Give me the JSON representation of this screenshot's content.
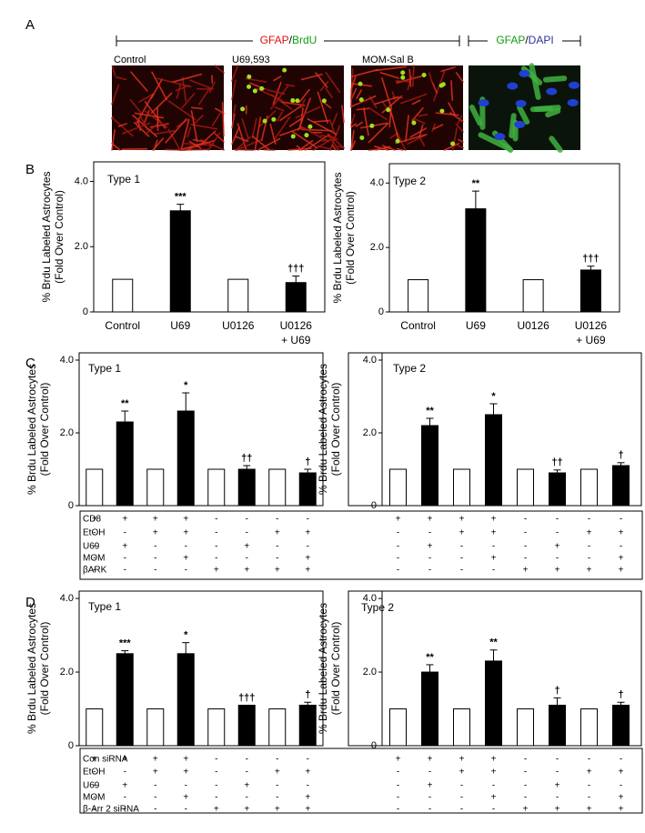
{
  "panels": [
    "A",
    "B",
    "C",
    "D"
  ],
  "image_headers": [
    {
      "parts": [
        {
          "text": "GFAP",
          "color": "#e01010"
        },
        {
          "text": "/",
          "color": "#000000"
        },
        {
          "text": "BrdU",
          "color": "#10a010"
        }
      ]
    },
    {
      "parts": [
        {
          "text": "GFAP",
          "color": "#10a010"
        },
        {
          "text": "/",
          "color": "#000000"
        },
        {
          "text": "DAPI",
          "color": "#3030a0"
        }
      ]
    }
  ],
  "image_labels": [
    "Control",
    "U69,593",
    "MOM-Sal B"
  ],
  "chart_data": [
    {
      "type": "bar",
      "title": "Type 1",
      "y_label": [
        "% Brdu Labeled Astrocytes",
        "(Fold Over Control)"
      ],
      "categories": [
        [
          "Control"
        ],
        [
          "U69"
        ],
        [
          "U0126"
        ],
        [
          "U0126",
          "+ U69"
        ]
      ],
      "values": [
        1,
        3.1,
        1,
        0.9
      ],
      "errors": [
        null,
        0.2,
        null,
        0.2
      ],
      "annotations": [
        null,
        "***",
        null,
        "†††"
      ],
      "colors": [
        "#ffffff",
        "#000000",
        "#ffffff",
        "#000000"
      ],
      "ylim": [
        0,
        4.6
      ],
      "yticks": [
        0,
        {
          "value": 2,
          "label": "2.0"
        },
        {
          "value": 4,
          "label": "4.0"
        }
      ]
    },
    {
      "type": "bar",
      "title": "Type 2",
      "y_label": [
        "% Brdu Labeled Astrocytes",
        "(Fold Over Control)"
      ],
      "categories": [
        [
          "Control"
        ],
        [
          "U69"
        ],
        [
          "U0126"
        ],
        [
          "U0126",
          "+ U69"
        ]
      ],
      "values": [
        1,
        3.2,
        1,
        1.3
      ],
      "errors": [
        null,
        0.55,
        null,
        0.12
      ],
      "annotations": [
        null,
        "**",
        null,
        "†††"
      ],
      "colors": [
        "#ffffff",
        "#000000",
        "#ffffff",
        "#000000"
      ],
      "ylim": [
        0,
        4.6
      ],
      "yticks": [
        0,
        {
          "value": 2,
          "label": "2.0"
        },
        {
          "value": 4,
          "label": "4.0"
        }
      ]
    },
    {
      "type": "bar",
      "title": "Type 1",
      "y_label": [
        "% Brdu Labeled Astrocytes",
        "(Fold Over Control)"
      ],
      "values": [
        1,
        2.3,
        1,
        2.6,
        1,
        1.0,
        1,
        0.9
      ],
      "errors": [
        null,
        0.3,
        null,
        0.5,
        null,
        0.1,
        null,
        0.1
      ],
      "annotations": [
        null,
        "**",
        null,
        "*",
        null,
        "††",
        null,
        "†"
      ],
      "colors": [
        "#ffffff",
        "#000000",
        "#ffffff",
        "#000000",
        "#ffffff",
        "#000000",
        "#ffffff",
        "#000000"
      ],
      "ylim": [
        0,
        4.2
      ],
      "yticks": [
        0,
        {
          "value": 2,
          "label": "2.0"
        },
        {
          "value": 4,
          "label": "4.0"
        }
      ],
      "conditions": [
        {
          "name": "CD8",
          "signs": [
            "+",
            "+",
            "+",
            "+",
            "-",
            "-",
            "-",
            "-"
          ]
        },
        {
          "name": "EtOH",
          "signs": [
            "-",
            "-",
            "+",
            "+",
            "-",
            "-",
            "+",
            "+"
          ]
        },
        {
          "name": "U69",
          "signs": [
            "-",
            "+",
            "-",
            "-",
            "-",
            "+",
            "-",
            "-"
          ]
        },
        {
          "name": "MOM",
          "signs": [
            "-",
            "-",
            "-",
            "+",
            "-",
            "-",
            "-",
            "+"
          ]
        },
        {
          "name": "βARK",
          "signs": [
            "-",
            "-",
            "-",
            "-",
            "+",
            "+",
            "+",
            "+"
          ]
        }
      ]
    },
    {
      "type": "bar",
      "title": "Type 2",
      "y_label": [
        "% Brdu Labeled Astrocytes",
        "(Fold Over Control)"
      ],
      "values": [
        1,
        2.2,
        1,
        2.5,
        1,
        0.9,
        1,
        1.1
      ],
      "errors": [
        null,
        0.2,
        null,
        0.3,
        null,
        0.08,
        null,
        0.08
      ],
      "annotations": [
        null,
        "**",
        null,
        "*",
        null,
        "††",
        null,
        "†"
      ],
      "colors": [
        "#ffffff",
        "#000000",
        "#ffffff",
        "#000000",
        "#ffffff",
        "#000000",
        "#ffffff",
        "#000000"
      ],
      "ylim": [
        0,
        4.2
      ],
      "yticks": [
        0,
        {
          "value": 2,
          "label": "2.0"
        },
        {
          "value": 4,
          "label": "4.0"
        }
      ],
      "conditions": [
        {
          "signs": [
            "+",
            "+",
            "+",
            "+",
            "-",
            "-",
            "-",
            "-"
          ]
        },
        {
          "signs": [
            "-",
            "-",
            "+",
            "+",
            "-",
            "-",
            "+",
            "+"
          ]
        },
        {
          "signs": [
            "-",
            "+",
            "-",
            "-",
            "-",
            "+",
            "-",
            "-"
          ]
        },
        {
          "signs": [
            "-",
            "-",
            "-",
            "+",
            "-",
            "-",
            "-",
            "+"
          ]
        },
        {
          "signs": [
            "-",
            "-",
            "-",
            "-",
            "+",
            "+",
            "+",
            "+"
          ]
        }
      ]
    },
    {
      "type": "bar",
      "title": "Type 1",
      "y_label": [
        "% Brdu Labeled Astrocytes",
        "(Fold Over Control)"
      ],
      "values": [
        1,
        2.5,
        1,
        2.5,
        1,
        1.1,
        1,
        1.1
      ],
      "errors": [
        null,
        0.08,
        null,
        0.3,
        null,
        null,
        null,
        0.08
      ],
      "annotations": [
        null,
        "***",
        null,
        "*",
        null,
        "†††",
        null,
        "†"
      ],
      "colors": [
        "#ffffff",
        "#000000",
        "#ffffff",
        "#000000",
        "#ffffff",
        "#000000",
        "#ffffff",
        "#000000"
      ],
      "ylim": [
        0,
        4.2
      ],
      "yticks": [
        0,
        {
          "value": 2,
          "label": "2.0"
        },
        {
          "value": 4,
          "label": "4.0"
        }
      ],
      "conditions": [
        {
          "name": "Con siRNA",
          "signs": [
            "+",
            "+",
            "+",
            "+",
            "-",
            "-",
            "-",
            "-"
          ]
        },
        {
          "name": "EtOH",
          "signs": [
            "-",
            "-",
            "+",
            "+",
            "-",
            "-",
            "+",
            "+"
          ]
        },
        {
          "name": "U69",
          "signs": [
            "-",
            "+",
            "-",
            "-",
            "-",
            "+",
            "-",
            "-"
          ]
        },
        {
          "name": "MOM",
          "signs": [
            "-",
            "-",
            "-",
            "+",
            "-",
            "-",
            "-",
            "+"
          ]
        },
        {
          "name": "β-Arr 2 siRNA",
          "signs": [
            "-",
            "-",
            "-",
            "-",
            "+",
            "+",
            "+",
            "+"
          ]
        }
      ]
    },
    {
      "type": "bar",
      "title": "Type 2",
      "y_label": [
        "% Brdu Labeled Astrocytes",
        "(Fold Over Control)"
      ],
      "values": [
        1,
        2.0,
        1,
        2.3,
        1,
        1.1,
        1,
        1.1
      ],
      "errors": [
        null,
        0.2,
        null,
        0.3,
        null,
        0.2,
        null,
        0.08
      ],
      "annotations": [
        null,
        "**",
        null,
        "**",
        null,
        "†",
        null,
        "†"
      ],
      "colors": [
        "#ffffff",
        "#000000",
        "#ffffff",
        "#000000",
        "#ffffff",
        "#000000",
        "#ffffff",
        "#000000"
      ],
      "ylim": [
        0,
        4.2
      ],
      "yticks": [
        0,
        {
          "value": 2,
          "label": "2.0"
        },
        {
          "value": 4,
          "label": "4.0"
        }
      ],
      "conditions": [
        {
          "signs": [
            "+",
            "+",
            "+",
            "+",
            "-",
            "-",
            "-",
            "-"
          ]
        },
        {
          "signs": [
            "-",
            "-",
            "+",
            "+",
            "-",
            "-",
            "+",
            "+"
          ]
        },
        {
          "signs": [
            "-",
            "+",
            "-",
            "-",
            "-",
            "+",
            "-",
            "-"
          ]
        },
        {
          "signs": [
            "-",
            "-",
            "-",
            "+",
            "-",
            "-",
            "-",
            "+"
          ]
        },
        {
          "signs": [
            "-",
            "-",
            "-",
            "-",
            "+",
            "+",
            "+",
            "+"
          ]
        }
      ]
    }
  ]
}
